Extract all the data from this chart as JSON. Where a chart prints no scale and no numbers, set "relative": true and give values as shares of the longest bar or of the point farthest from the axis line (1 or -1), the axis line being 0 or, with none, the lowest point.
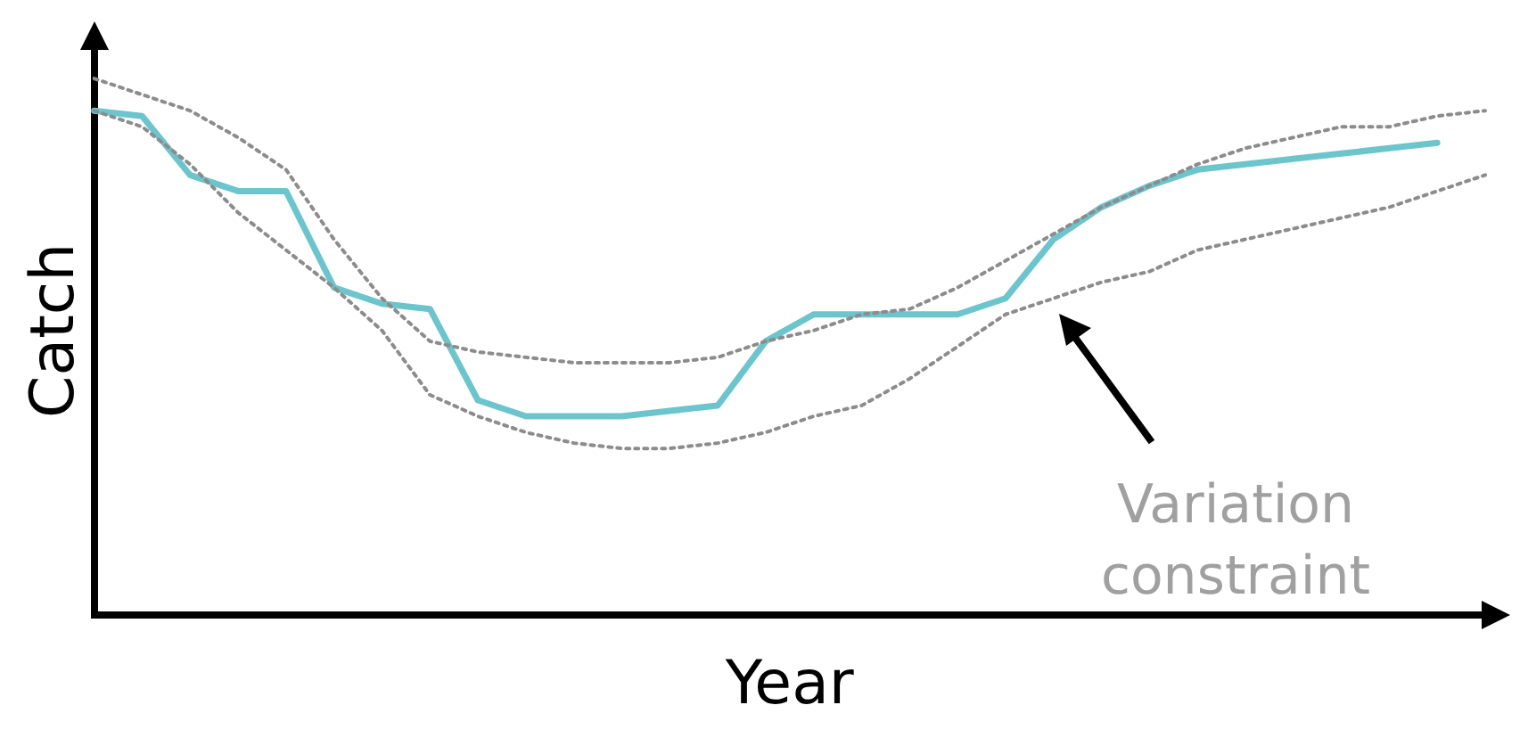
{
  "chart_data": {
    "type": "line",
    "relative": true,
    "xlabel": "Year",
    "ylabel": "Catch",
    "legend": false,
    "grid": false,
    "categories": [
      null,
      null,
      null,
      null,
      null,
      null,
      null,
      null,
      null,
      null,
      null,
      null,
      null,
      null,
      null,
      null,
      null,
      null,
      null,
      null,
      null,
      null,
      null,
      null,
      null,
      null,
      null,
      null,
      null,
      null
    ],
    "series": [
      {
        "color": "#8c8c8c",
        "line_style": "dotted",
        "values": [
          1,
          0.97,
          0.94,
          0.89,
          0.83,
          0.7,
          0.59,
          0.51,
          0.49,
          0.48,
          0.47,
          0.47,
          0.47,
          0.48,
          0.51,
          0.53,
          0.56,
          0.57,
          0.61,
          0.66,
          0.71,
          0.76,
          0.8,
          0.84,
          0.87,
          0.89,
          0.91,
          0.91,
          0.93,
          0.94
        ]
      },
      {
        "color": "#8c8c8c",
        "line_style": "dotted",
        "values": [
          0.94,
          0.91,
          0.84,
          0.75,
          0.68,
          0.61,
          0.53,
          0.41,
          0.37,
          0.34,
          0.32,
          0.31,
          0.31,
          0.32,
          0.34,
          0.37,
          0.39,
          0.44,
          0.5,
          0.56,
          0.59,
          0.62,
          0.64,
          0.68,
          0.7,
          0.72,
          0.74,
          0.76,
          0.79,
          0.82
        ]
      },
      {
        "color": "#6cc5cc",
        "line_style": "solid",
        "values": [
          0.94,
          0.93,
          0.82,
          0.79,
          0.79,
          0.61,
          0.58,
          0.57,
          0.4,
          0.37,
          0.37,
          0.37,
          0.38,
          0.39,
          0.51,
          0.56,
          0.56,
          0.56,
          0.56,
          0.59,
          0.7,
          0.76,
          0.8,
          0.83,
          0.84,
          0.85,
          0.86,
          0.87,
          0.88,
          null
        ]
      }
    ],
    "annotations": [
      "Variation constraint"
    ]
  }
}
